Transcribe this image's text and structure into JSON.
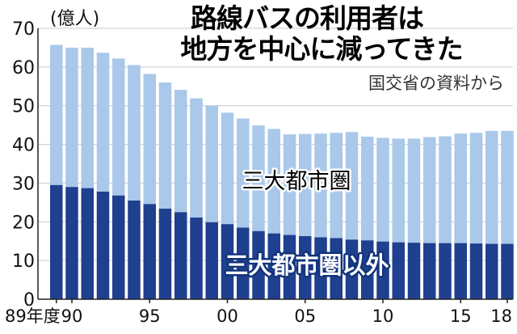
{
  "chart_data": {
    "type": "bar",
    "stacked": true,
    "title_lines": [
      "路線バスの利用者は",
      "地方を中心に減ってきた"
    ],
    "source": "国交省の資料から",
    "ylabel": "(億人)",
    "ylim": [
      0,
      70
    ],
    "yticks": [
      "0",
      "10",
      "20",
      "30",
      "40",
      "50",
      "60",
      "70"
    ],
    "x_tick_labels": [
      {
        "index": 0,
        "label": "89年度"
      },
      {
        "index": 1,
        "label": "90"
      },
      {
        "index": 6,
        "label": "95"
      },
      {
        "index": 11,
        "label": "00"
      },
      {
        "index": 16,
        "label": "05"
      },
      {
        "index": 21,
        "label": "10"
      },
      {
        "index": 26,
        "label": "15"
      },
      {
        "index": 29,
        "label": "18"
      }
    ],
    "categories": [
      "1989",
      "1990",
      "1991",
      "1992",
      "1993",
      "1994",
      "1995",
      "1996",
      "1997",
      "1998",
      "1999",
      "2000",
      "2001",
      "2002",
      "2003",
      "2004",
      "2005",
      "2006",
      "2007",
      "2008",
      "2009",
      "2010",
      "2011",
      "2012",
      "2013",
      "2014",
      "2015",
      "2016",
      "2017",
      "2018"
    ],
    "series": [
      {
        "name": "三大都市圏以外",
        "color": "#1f3f8f",
        "values": [
          29.5,
          29.0,
          28.7,
          27.8,
          26.8,
          25.5,
          24.6,
          23.4,
          22.5,
          21.1,
          19.9,
          19.4,
          18.5,
          17.6,
          17.0,
          16.6,
          16.3,
          16.0,
          15.8,
          15.4,
          15.2,
          14.9,
          14.7,
          14.6,
          14.5,
          14.5,
          14.5,
          14.4,
          14.3,
          14.3
        ]
      },
      {
        "name": "三大都市圏",
        "color": "#a9c8ea",
        "values": [
          36.2,
          36.0,
          36.3,
          35.9,
          35.4,
          35.0,
          33.6,
          32.6,
          31.6,
          30.8,
          30.1,
          28.8,
          28.2,
          27.3,
          27.0,
          26.0,
          26.4,
          26.8,
          27.2,
          27.8,
          26.8,
          26.8,
          26.8,
          26.9,
          27.4,
          27.6,
          28.3,
          28.6,
          29.2,
          29.2
        ]
      }
    ]
  }
}
